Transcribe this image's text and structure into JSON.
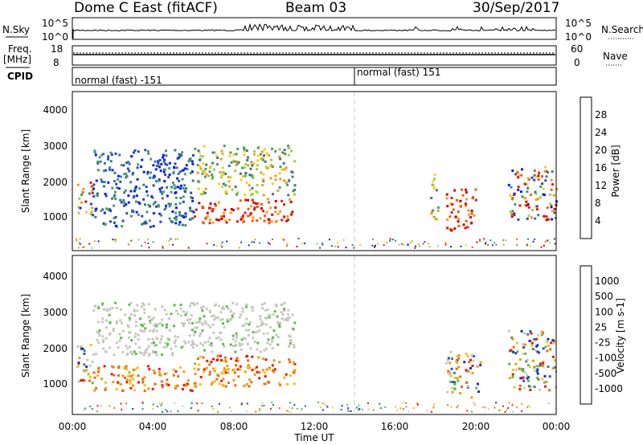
{
  "header": {
    "station": "Dome C East (fitACF)",
    "beam": "Beam 03",
    "date": "30/Sep/2017"
  },
  "housekeeping": {
    "nsky_label": "N.Sky",
    "nsky_ticks": [
      "10^5",
      "10^0"
    ],
    "nsearch_label": "N.Search",
    "nsearch_ticks": [
      "10^5",
      "10^0"
    ],
    "freq_label": "Freq.",
    "freq_unit": "[MHz]",
    "freq_ticks": [
      "18",
      "8"
    ],
    "nave_label": "Nave",
    "nave_ticks": [
      "60",
      "0"
    ],
    "cpid_label": "CPID",
    "cpid_segments": [
      {
        "label": "normal (fast) -151",
        "start_hour": 0
      },
      {
        "label": "normal (fast) 151",
        "start_hour": 14
      }
    ]
  },
  "chart_data": [
    {
      "type": "heatmap",
      "name": "power",
      "ylabel": "Slant Range [km]",
      "xlabel": "",
      "x_range_hours": [
        0,
        24
      ],
      "ylim": [
        0,
        4500
      ],
      "yticks": [
        "1000",
        "2000",
        "3000",
        "4000"
      ],
      "colorbar": {
        "label": "Power [dB]",
        "ticks": [
          "4",
          "8",
          "12",
          "16",
          "20",
          "24",
          "28"
        ],
        "colors": [
          "#0a1eea",
          "#2a4bb0",
          "#3d7a8c",
          "#4a9a6a",
          "#9bd24a",
          "#f2cf1f",
          "#f39a1c",
          "#f35a12",
          "#e61a10",
          "#d20000"
        ]
      },
      "echo_regions": [
        {
          "t0": 0.2,
          "t1": 1.0,
          "r0": 1000,
          "r1": 2000,
          "level": "mixed"
        },
        {
          "t0": 1.0,
          "t1": 6.0,
          "r0": 700,
          "r1": 2900,
          "level": "low"
        },
        {
          "t0": 6.0,
          "t1": 11.0,
          "r0": 800,
          "r1": 1500,
          "level": "high"
        },
        {
          "t0": 6.0,
          "t1": 11.0,
          "r0": 1600,
          "r1": 3000,
          "level": "mid"
        },
        {
          "t0": 17.7,
          "t1": 18.2,
          "r0": 900,
          "r1": 2200,
          "level": "mid"
        },
        {
          "t0": 18.5,
          "t1": 20.0,
          "r0": 600,
          "r1": 1800,
          "level": "high"
        },
        {
          "t0": 21.6,
          "t1": 24.0,
          "r0": 900,
          "r1": 2400,
          "level": "mixed"
        }
      ]
    },
    {
      "type": "heatmap",
      "name": "velocity",
      "ylabel": "Slant Range [km]",
      "xlabel": "Time UT",
      "x_range_hours": [
        0,
        24
      ],
      "ylim": [
        0,
        4500
      ],
      "yticks": [
        "1000",
        "2000",
        "3000",
        "4000"
      ],
      "xticks": [
        "00:00",
        "04:00",
        "08:00",
        "12:00",
        "16:00",
        "20:00",
        "00:00"
      ],
      "colorbar": {
        "label": "Velocity [m s-1]",
        "ticks": [
          "1000",
          "500",
          "100",
          "25",
          "-25",
          "-100",
          "-500",
          "-1000"
        ],
        "colors": [
          "#1a32b4",
          "#2a5cb0",
          "#3a8a7a",
          "#5fba4a",
          "#c8c8c0",
          "#c8c8c0",
          "#f2c01c",
          "#f09a14",
          "#ee6a10",
          "#e81a10"
        ]
      },
      "echo_regions": [
        {
          "t0": 0.2,
          "t1": 1.0,
          "r0": 800,
          "r1": 2000,
          "level": "mixed"
        },
        {
          "t0": 1.0,
          "t1": 6.0,
          "r0": 700,
          "r1": 1400,
          "level": "negative"
        },
        {
          "t0": 1.0,
          "t1": 6.0,
          "r0": 1700,
          "r1": 3200,
          "level": "near-zero"
        },
        {
          "t0": 6.0,
          "t1": 11.0,
          "r0": 800,
          "r1": 1700,
          "level": "negative"
        },
        {
          "t0": 6.0,
          "t1": 11.0,
          "r0": 1800,
          "r1": 3200,
          "level": "near-zero"
        },
        {
          "t0": 18.5,
          "t1": 20.2,
          "r0": 500,
          "r1": 1800,
          "level": "mixed"
        },
        {
          "t0": 21.6,
          "t1": 24.0,
          "r0": 700,
          "r1": 2400,
          "level": "mixed"
        }
      ]
    }
  ]
}
